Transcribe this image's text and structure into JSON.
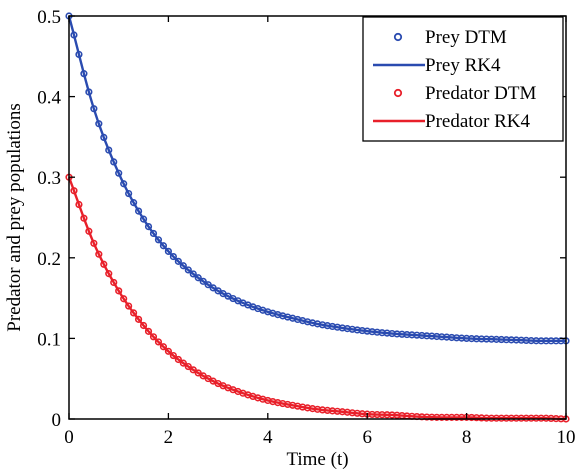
{
  "chart_data": {
    "type": "line",
    "xlabel": "Time (t)",
    "ylabel": "Predator and prey populations",
    "xlim": [
      0,
      10
    ],
    "ylim": [
      0,
      0.5
    ],
    "xticks": [
      0,
      2,
      4,
      6,
      8,
      10
    ],
    "yticks": [
      0,
      0.1,
      0.2,
      0.3,
      0.4,
      0.5
    ],
    "grid": false,
    "legend_position": "top-right",
    "x": [
      0,
      0.5,
      1,
      1.5,
      2,
      2.5,
      3,
      3.5,
      4,
      4.5,
      5,
      5.5,
      6,
      6.5,
      7,
      7.5,
      8,
      8.5,
      9,
      9.5,
      10
    ],
    "series": [
      {
        "name": "Prey DTM",
        "style": "markers",
        "color": "#2a4bb0",
        "values": [
          0.5,
          0.385,
          0.305,
          0.248,
          0.208,
          0.18,
          0.159,
          0.144,
          0.133,
          0.125,
          0.118,
          0.113,
          0.109,
          0.106,
          0.104,
          0.102,
          0.1,
          0.099,
          0.098,
          0.097,
          0.097
        ]
      },
      {
        "name": "Prey RK4",
        "style": "line",
        "color": "#2a4bb0",
        "values": [
          0.5,
          0.385,
          0.305,
          0.248,
          0.208,
          0.18,
          0.159,
          0.144,
          0.133,
          0.125,
          0.118,
          0.113,
          0.109,
          0.106,
          0.104,
          0.102,
          0.1,
          0.099,
          0.098,
          0.097,
          0.097
        ]
      },
      {
        "name": "Predator DTM",
        "style": "markers",
        "color": "#e8202a",
        "values": [
          0.3,
          0.218,
          0.159,
          0.116,
          0.084,
          0.061,
          0.044,
          0.032,
          0.023,
          0.017,
          0.012,
          0.009,
          0.006,
          0.005,
          0.003,
          0.002,
          0.002,
          0.001,
          0.001,
          0.001,
          0.0
        ]
      },
      {
        "name": "Predator RK4",
        "style": "line",
        "color": "#e8202a",
        "values": [
          0.3,
          0.218,
          0.159,
          0.116,
          0.084,
          0.061,
          0.044,
          0.032,
          0.023,
          0.017,
          0.012,
          0.009,
          0.006,
          0.005,
          0.003,
          0.002,
          0.002,
          0.001,
          0.001,
          0.001,
          0.0
        ]
      }
    ]
  }
}
